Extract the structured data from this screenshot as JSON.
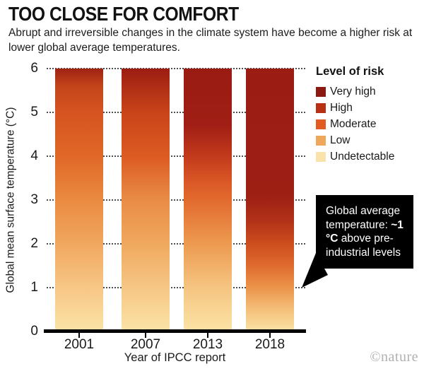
{
  "header": {
    "title": "TOO CLOSE FOR COMFORT",
    "subtitle": "Abrupt and irreversible changes in the climate system have become a higher risk at lower global average temperatures."
  },
  "chart": {
    "ylabel": "Global mean surface temperature (°C)",
    "xlabel": "Year of IPCC report"
  },
  "legend": {
    "title": "Level of risk",
    "items": [
      {
        "label": "Very high",
        "color": "#8c1911"
      },
      {
        "label": "High",
        "color": "#b93115"
      },
      {
        "label": "Moderate",
        "color": "#e25b20"
      },
      {
        "label": "Low",
        "color": "#efa85b"
      },
      {
        "label": "Undetectable",
        "color": "#f9e3aa"
      }
    ]
  },
  "callout": {
    "prefix": "Global average temperature: ",
    "bold": "~1 °C",
    "suffix": " above pre-industrial levels"
  },
  "watermark": "©nature",
  "chart_data": {
    "type": "bar",
    "title": "TOO CLOSE FOR COMFORT",
    "subtitle": "Abrupt and irreversible changes in the climate system have become a higher risk at lower global average temperatures.",
    "categories": [
      "2001",
      "2007",
      "2013",
      "2018"
    ],
    "values": [
      6,
      6,
      6,
      6
    ],
    "xlabel": "Year of IPCC report",
    "ylabel": "Global mean surface temperature (°C)",
    "ylim": [
      0,
      6
    ],
    "yticks": [
      0,
      1,
      2,
      3,
      4,
      5,
      6
    ],
    "grid": "dotted horizontal gridlines at each integer temperature",
    "legend_position": "top-right",
    "annotation": "Global average temperature: ~1 °C above pre-industrial levels",
    "risk_scale": [
      "Undetectable",
      "Low",
      "Moderate",
      "High",
      "Very high"
    ],
    "series": [
      {
        "name": "2001",
        "gradient_stops": [
          {
            "temp": 6.0,
            "color": "#9e2312"
          },
          {
            "temp": 5.6,
            "color": "#c4441a"
          },
          {
            "temp": 5.0,
            "color": "#d65420"
          },
          {
            "temp": 4.0,
            "color": "#e06727"
          },
          {
            "temp": 3.0,
            "color": "#ea8a41"
          },
          {
            "temp": 2.0,
            "color": "#f1a75f"
          },
          {
            "temp": 1.0,
            "color": "#f7c685"
          },
          {
            "temp": 0.0,
            "color": "#fbe3a6"
          }
        ]
      },
      {
        "name": "2007",
        "gradient_stops": [
          {
            "temp": 6.0,
            "color": "#9c1d12"
          },
          {
            "temp": 5.4,
            "color": "#b73517"
          },
          {
            "temp": 5.0,
            "color": "#c94419"
          },
          {
            "temp": 4.0,
            "color": "#dc5a22"
          },
          {
            "temp": 3.0,
            "color": "#e98c46"
          },
          {
            "temp": 2.0,
            "color": "#f0a85e"
          },
          {
            "temp": 1.0,
            "color": "#f6c684"
          },
          {
            "temp": 0.0,
            "color": "#fbe3a6"
          }
        ]
      },
      {
        "name": "2013",
        "gradient_stops": [
          {
            "temp": 6.0,
            "color": "#991b11"
          },
          {
            "temp": 4.7,
            "color": "#a01e15"
          },
          {
            "temp": 4.0,
            "color": "#c23a1b"
          },
          {
            "temp": 3.4,
            "color": "#da5826"
          },
          {
            "temp": 3.0,
            "color": "#e26a2e"
          },
          {
            "temp": 2.0,
            "color": "#ed9a50"
          },
          {
            "temp": 1.0,
            "color": "#f5c480"
          },
          {
            "temp": 0.0,
            "color": "#fbe3a6"
          }
        ]
      },
      {
        "name": "2018",
        "gradient_stops": [
          {
            "temp": 6.0,
            "color": "#9b1c13"
          },
          {
            "temp": 3.1,
            "color": "#9d1f14"
          },
          {
            "temp": 2.5,
            "color": "#b23218"
          },
          {
            "temp": 2.0,
            "color": "#cd4d1e"
          },
          {
            "temp": 1.5,
            "color": "#df6a2e"
          },
          {
            "temp": 1.0,
            "color": "#ec9349"
          },
          {
            "temp": 0.5,
            "color": "#f4be78"
          },
          {
            "temp": 0.0,
            "color": "#fae2a4"
          }
        ]
      }
    ]
  }
}
